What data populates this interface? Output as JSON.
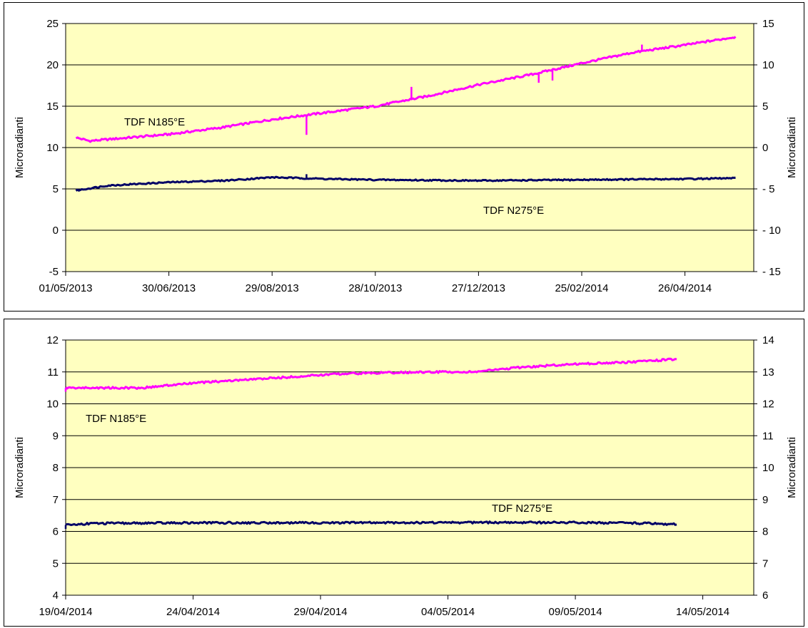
{
  "chart_data": [
    {
      "type": "line",
      "title": "",
      "xlabel": "",
      "ylabel": "Microradianti",
      "y2label": "Microradianti",
      "ylim": [
        -5,
        25
      ],
      "y2lim": [
        -15,
        15
      ],
      "yticks": [
        -5,
        0,
        5,
        10,
        15,
        20,
        25
      ],
      "y2ticks": [
        -15,
        -10,
        -5,
        0,
        5,
        10,
        15
      ],
      "y2tick_labels": [
        "- 15",
        "- 10",
        "- 5",
        "0",
        "5",
        "10",
        "15"
      ],
      "x_start": "2013-05-01",
      "x_end": "2014-06-05",
      "xticks": [
        "2013-05-01",
        "2013-06-30",
        "2013-08-29",
        "2013-10-28",
        "2013-12-27",
        "2014-02-25",
        "2014-04-26"
      ],
      "xtick_labels": [
        "01/05/2013",
        "30/06/2013",
        "29/08/2013",
        "28/10/2013",
        "27/12/2013",
        "25/02/2014",
        "26/04/2014"
      ],
      "plot_background": "#ffffc0",
      "grid": true,
      "series": [
        {
          "name": "TDF N185°E",
          "label": "TDF N185°E",
          "color": "#ff00ff",
          "axis": "left",
          "points": [
            [
              "2013-05-07",
              11.2
            ],
            [
              "2013-05-15",
              10.8
            ],
            [
              "2013-06-01",
              11.1
            ],
            [
              "2013-06-30",
              11.6
            ],
            [
              "2013-07-30",
              12.4
            ],
            [
              "2013-08-29",
              13.4
            ],
            [
              "2013-09-28",
              14.2
            ],
            [
              "2013-10-28",
              15.0
            ],
            [
              "2013-11-27",
              16.2
            ],
            [
              "2013-12-27",
              17.6
            ],
            [
              "2014-01-26",
              18.8
            ],
            [
              "2014-02-25",
              20.2
            ],
            [
              "2014-03-27",
              21.5
            ],
            [
              "2014-04-26",
              22.4
            ],
            [
              "2014-05-26",
              23.4
            ]
          ]
        },
        {
          "name": "TDF N275°E",
          "label": "TDF N275°E",
          "color": "#000066",
          "axis": "left",
          "points": [
            [
              "2013-05-07",
              4.8
            ],
            [
              "2013-05-25",
              5.4
            ],
            [
              "2013-06-30",
              5.8
            ],
            [
              "2013-08-01",
              6.0
            ],
            [
              "2013-08-29",
              6.4
            ],
            [
              "2013-10-01",
              6.2
            ],
            [
              "2013-10-28",
              6.1
            ],
            [
              "2013-12-27",
              6.0
            ],
            [
              "2014-02-25",
              6.1
            ],
            [
              "2014-04-26",
              6.2
            ],
            [
              "2014-05-26",
              6.3
            ]
          ]
        }
      ]
    },
    {
      "type": "line",
      "title": "",
      "xlabel": "",
      "ylabel": "Microradianti",
      "y2label": "Microradianti",
      "ylim": [
        4,
        12
      ],
      "y2lim": [
        6,
        14
      ],
      "yticks": [
        4,
        5,
        6,
        7,
        8,
        9,
        10,
        11,
        12
      ],
      "y2ticks": [
        6,
        7,
        8,
        9,
        10,
        11,
        12,
        13,
        14
      ],
      "y2tick_labels": [
        "6",
        "7",
        "8",
        "9",
        "10",
        "11",
        "12",
        "13",
        "14"
      ],
      "x_start": "2014-04-19",
      "x_end": "2014-05-16",
      "xticks": [
        "2014-04-19",
        "2014-04-24",
        "2014-04-29",
        "2014-05-04",
        "2014-05-09",
        "2014-05-14"
      ],
      "xtick_labels": [
        "19/04/2014",
        "24/04/2014",
        "29/04/2014",
        "04/05/2014",
        "09/05/2014",
        "14/05/2014"
      ],
      "plot_background": "#ffffc0",
      "grid": true,
      "series": [
        {
          "name": "TDF N185°E",
          "label": "TDF N185°E",
          "color": "#ff00ff",
          "axis": "left",
          "points": [
            [
              "2014-04-19",
              10.5
            ],
            [
              "2014-04-21",
              10.5
            ],
            [
              "2014-04-22",
              10.5
            ],
            [
              "2014-04-24",
              10.65
            ],
            [
              "2014-04-26",
              10.75
            ],
            [
              "2014-04-28",
              10.85
            ],
            [
              "2014-04-30",
              10.95
            ],
            [
              "2014-05-02",
              10.98
            ],
            [
              "2014-05-04",
              11.0
            ],
            [
              "2014-05-05",
              11.0
            ],
            [
              "2014-05-07",
              11.15
            ],
            [
              "2014-05-09",
              11.25
            ],
            [
              "2014-05-11",
              11.3
            ],
            [
              "2014-05-12",
              11.35
            ],
            [
              "2014-05-13",
              11.4
            ]
          ]
        },
        {
          "name": "TDF N275°E",
          "label": "TDF N275°E",
          "color": "#000066",
          "axis": "left",
          "points": [
            [
              "2014-04-19",
              6.2
            ],
            [
              "2014-04-20",
              6.25
            ],
            [
              "2014-04-24",
              6.27
            ],
            [
              "2014-04-29",
              6.27
            ],
            [
              "2014-05-04",
              6.28
            ],
            [
              "2014-05-09",
              6.28
            ],
            [
              "2014-05-12",
              6.25
            ],
            [
              "2014-05-13",
              6.22
            ]
          ]
        }
      ]
    }
  ]
}
